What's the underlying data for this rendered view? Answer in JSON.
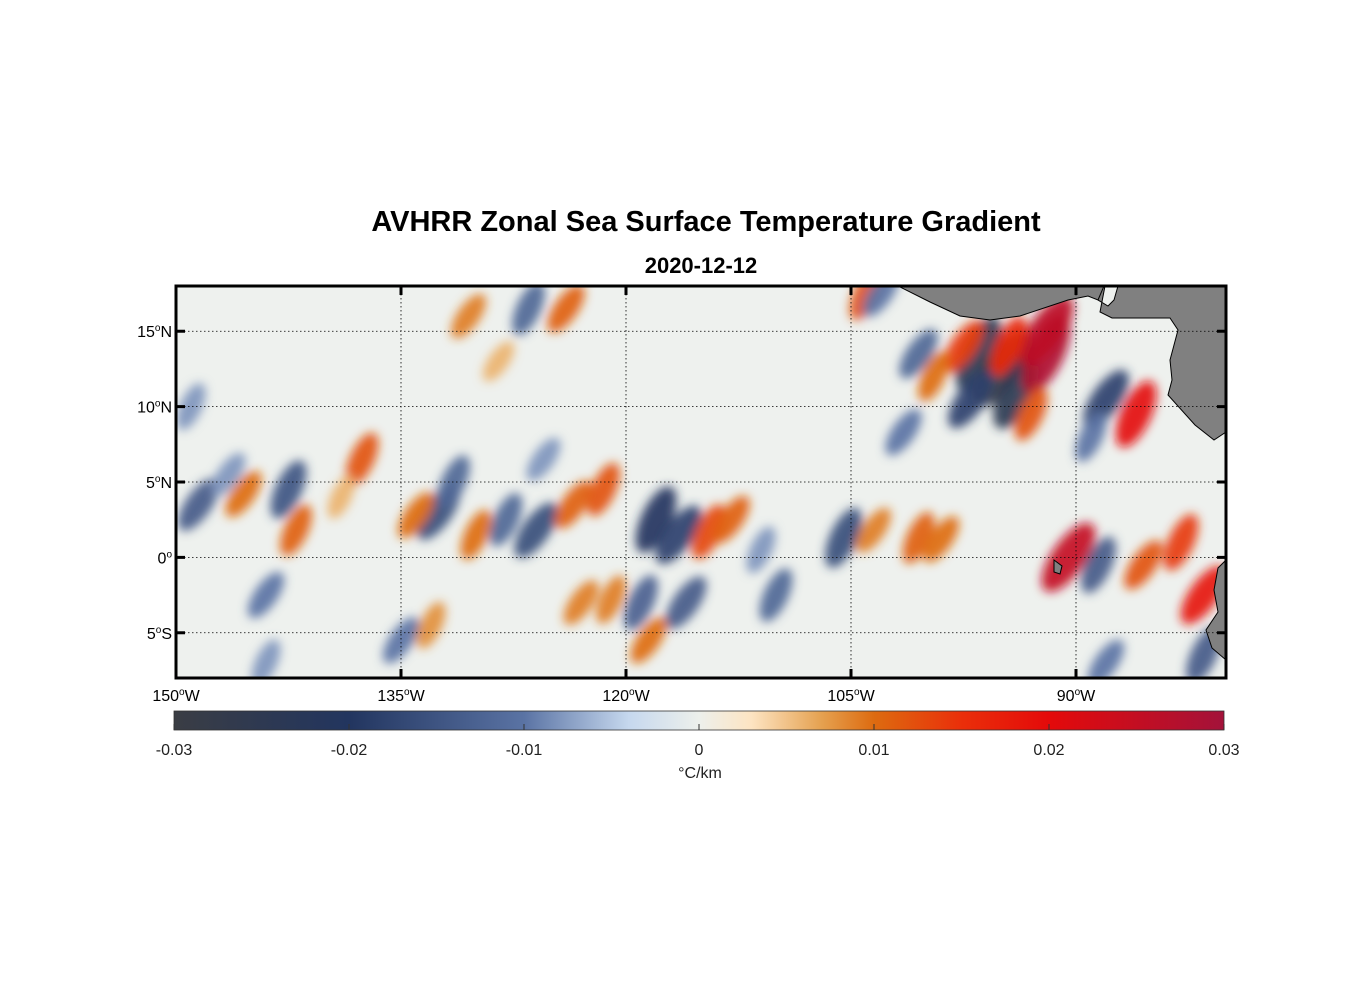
{
  "title": "AVHRR Zonal Sea Surface Temperature Gradient",
  "subtitle": "2020-12-12",
  "map": {
    "longitude_range_deg": [
      -150,
      -80
    ],
    "latitude_range_deg": [
      -8,
      18
    ],
    "x_ticks": [
      {
        "value": -150,
        "num": "150",
        "hem": "W"
      },
      {
        "value": -135,
        "num": "135",
        "hem": "W"
      },
      {
        "value": -120,
        "num": "120",
        "hem": "W"
      },
      {
        "value": -105,
        "num": "105",
        "hem": "W"
      },
      {
        "value": -90,
        "num": "90",
        "hem": "W"
      }
    ],
    "y_ticks": [
      {
        "value": 15,
        "num": "15",
        "hem": "N"
      },
      {
        "value": 10,
        "num": "10",
        "hem": "N"
      },
      {
        "value": 5,
        "num": "5",
        "hem": "N"
      },
      {
        "value": 0,
        "num": "0",
        "hem": ""
      },
      {
        "value": -5,
        "num": "5",
        "hem": "S"
      }
    ],
    "degree_symbol": "o",
    "land_color": "#808080",
    "features": [
      {
        "lon": -137.6,
        "lat": 6.5,
        "value": 0.012
      },
      {
        "lon": -145.5,
        "lat": 4.2,
        "value": 0.01
      },
      {
        "lon": -142.0,
        "lat": 1.8,
        "value": 0.011
      },
      {
        "lon": -148.5,
        "lat": 3.5,
        "value": -0.014
      },
      {
        "lon": -142.5,
        "lat": 4.5,
        "value": -0.015
      },
      {
        "lon": -146.5,
        "lat": 5.5,
        "value": -0.008
      },
      {
        "lon": -149.0,
        "lat": 10.0,
        "value": -0.008
      },
      {
        "lon": -144.0,
        "lat": -2.5,
        "value": -0.01
      },
      {
        "lon": -139.0,
        "lat": 4.0,
        "value": 0.006
      },
      {
        "lon": -132.5,
        "lat": 3.0,
        "value": -0.016
      },
      {
        "lon": -131.5,
        "lat": 5.0,
        "value": -0.012
      },
      {
        "lon": -134.0,
        "lat": 2.8,
        "value": 0.01
      },
      {
        "lon": -130.0,
        "lat": 1.5,
        "value": 0.01
      },
      {
        "lon": -126.0,
        "lat": 1.8,
        "value": -0.016
      },
      {
        "lon": -128.0,
        "lat": 2.5,
        "value": -0.012
      },
      {
        "lon": -123.5,
        "lat": 3.5,
        "value": 0.011
      },
      {
        "lon": -121.5,
        "lat": 4.5,
        "value": 0.012
      },
      {
        "lon": -125.5,
        "lat": 6.5,
        "value": -0.008
      },
      {
        "lon": -118.0,
        "lat": 2.5,
        "value": -0.02
      },
      {
        "lon": -116.5,
        "lat": 1.5,
        "value": -0.018
      },
      {
        "lon": -114.5,
        "lat": 1.7,
        "value": 0.013
      },
      {
        "lon": -113.0,
        "lat": 2.5,
        "value": 0.011
      },
      {
        "lon": -105.5,
        "lat": 1.3,
        "value": -0.016
      },
      {
        "lon": -103.5,
        "lat": 1.8,
        "value": 0.009
      },
      {
        "lon": -100.5,
        "lat": 1.3,
        "value": 0.011
      },
      {
        "lon": -99.0,
        "lat": 1.2,
        "value": 0.01
      },
      {
        "lon": -96.5,
        "lat": 13.5,
        "value": -0.025
      },
      {
        "lon": -95.0,
        "lat": 12.5,
        "value": -0.03
      },
      {
        "lon": -94.0,
        "lat": 11.0,
        "value": -0.025
      },
      {
        "lon": -97.0,
        "lat": 10.5,
        "value": -0.018
      },
      {
        "lon": -92.0,
        "lat": 13.5,
        "value": 0.028
      },
      {
        "lon": -92.0,
        "lat": 15.0,
        "value": 0.026
      },
      {
        "lon": -94.5,
        "lat": 14.0,
        "value": 0.016
      },
      {
        "lon": -97.5,
        "lat": 14.0,
        "value": 0.014
      },
      {
        "lon": -99.5,
        "lat": 12.0,
        "value": 0.01
      },
      {
        "lon": -100.5,
        "lat": 13.5,
        "value": -0.012
      },
      {
        "lon": -93.0,
        "lat": 9.5,
        "value": 0.012
      },
      {
        "lon": -101.5,
        "lat": 8.3,
        "value": -0.01
      },
      {
        "lon": -86.0,
        "lat": 9.5,
        "value": 0.02
      },
      {
        "lon": -88.0,
        "lat": 10.5,
        "value": -0.018
      },
      {
        "lon": -89.0,
        "lat": 8.0,
        "value": -0.01
      },
      {
        "lon": -90.5,
        "lat": 0.0,
        "value": 0.025
      },
      {
        "lon": -88.5,
        "lat": -0.5,
        "value": -0.014
      },
      {
        "lon": -85.5,
        "lat": -0.5,
        "value": 0.012
      },
      {
        "lon": -83.0,
        "lat": 1.0,
        "value": 0.014
      },
      {
        "lon": -81.5,
        "lat": -2.5,
        "value": 0.018
      },
      {
        "lon": -81.5,
        "lat": -6.5,
        "value": -0.014
      },
      {
        "lon": -116.0,
        "lat": -3.0,
        "value": -0.014
      },
      {
        "lon": -110.0,
        "lat": -2.5,
        "value": -0.012
      },
      {
        "lon": -135.0,
        "lat": -5.5,
        "value": -0.01
      },
      {
        "lon": -133.0,
        "lat": -4.5,
        "value": 0.008
      },
      {
        "lon": -123.0,
        "lat": -3.0,
        "value": 0.009
      },
      {
        "lon": -119.0,
        "lat": -3.0,
        "value": -0.013
      },
      {
        "lon": -118.5,
        "lat": -5.5,
        "value": 0.01
      },
      {
        "lon": -121.0,
        "lat": -2.8,
        "value": 0.009
      },
      {
        "lon": -124.0,
        "lat": 16.5,
        "value": 0.011
      },
      {
        "lon": -126.5,
        "lat": 16.5,
        "value": -0.012
      },
      {
        "lon": -130.5,
        "lat": 16.0,
        "value": 0.009
      },
      {
        "lon": -104.0,
        "lat": 17.5,
        "value": 0.012
      },
      {
        "lon": -103.0,
        "lat": 17.5,
        "value": -0.01
      },
      {
        "lon": -144.0,
        "lat": -7.0,
        "value": -0.008
      },
      {
        "lon": -88.0,
        "lat": -7.0,
        "value": -0.01
      },
      {
        "lon": -111.0,
        "lat": 0.5,
        "value": -0.008
      },
      {
        "lon": -128.5,
        "lat": 13.0,
        "value": 0.006
      }
    ]
  },
  "colorbar": {
    "ticks": [
      {
        "value": -0.03,
        "label": "-0.03"
      },
      {
        "value": -0.02,
        "label": "-0.02"
      },
      {
        "value": -0.01,
        "label": "-0.01"
      },
      {
        "value": 0,
        "label": "0"
      },
      {
        "value": 0.01,
        "label": "0.01"
      },
      {
        "value": 0.02,
        "label": "0.02"
      },
      {
        "value": 0.03,
        "label": "0.03"
      }
    ],
    "range": [
      -0.03,
      0.03
    ],
    "label": "°C/km",
    "stops": [
      {
        "value": -0.03,
        "color": "#3a3d44"
      },
      {
        "value": -0.02,
        "color": "#22355f"
      },
      {
        "value": -0.01,
        "color": "#5a73a4"
      },
      {
        "value": -0.004,
        "color": "#c6d8ee"
      },
      {
        "value": 0.0,
        "color": "#edf0ec"
      },
      {
        "value": 0.003,
        "color": "#fde4c2"
      },
      {
        "value": 0.007,
        "color": "#e5a150"
      },
      {
        "value": 0.01,
        "color": "#dd6b10"
      },
      {
        "value": 0.015,
        "color": "#ea2f0a"
      },
      {
        "value": 0.02,
        "color": "#e40a0a"
      },
      {
        "value": 0.03,
        "color": "#a3123a"
      }
    ]
  }
}
